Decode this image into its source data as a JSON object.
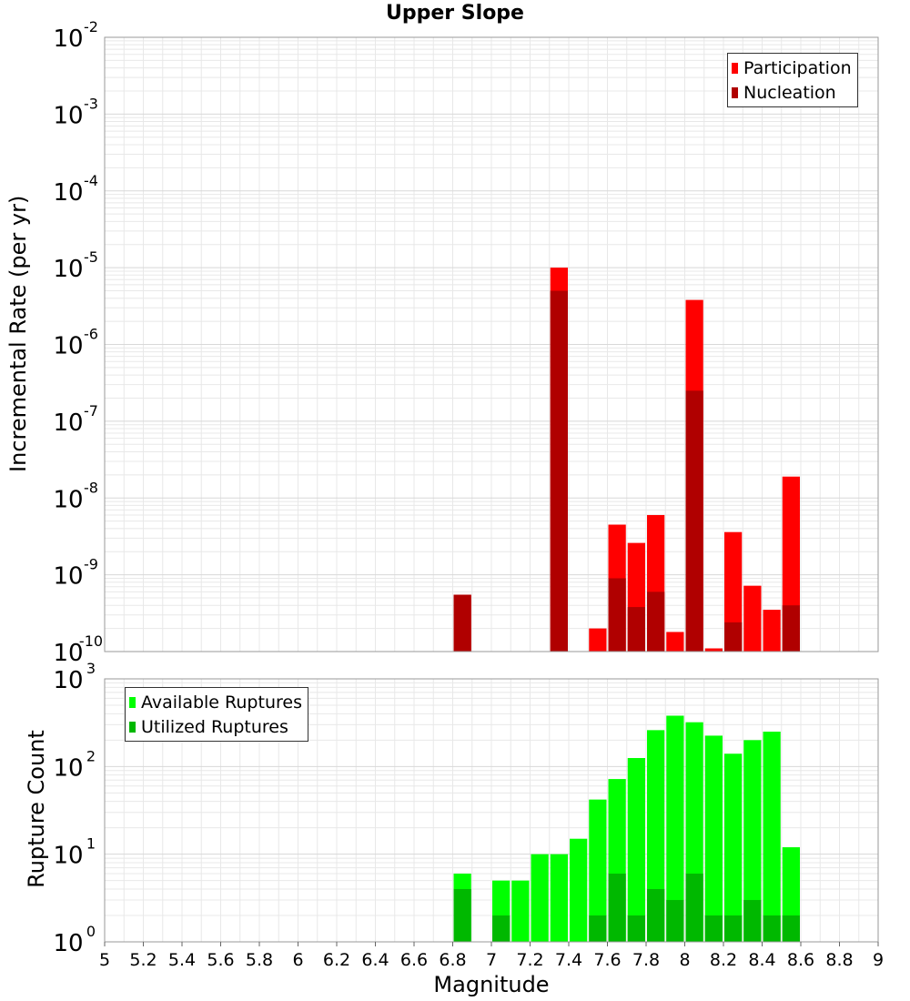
{
  "title": "Upper Slope",
  "xlabel": "Magnitude",
  "colors": {
    "participation": "#ff0000",
    "nucleation": "#b00000",
    "available": "#00ff00",
    "utilized": "#00b800",
    "grid": "#e8e8e8",
    "frame": "#999999"
  },
  "chart_data": [
    {
      "type": "bar",
      "title": "Upper Slope",
      "ylabel": "Incremental Rate (per yr)",
      "yscale": "log",
      "ylim_exp": [
        -10,
        -2
      ],
      "xlim": [
        5,
        9
      ],
      "grid": true,
      "legend_position": "top-right",
      "x": [
        6.85,
        7.35,
        7.55,
        7.65,
        7.75,
        7.85,
        7.95,
        8.05,
        8.15,
        8.25,
        8.35,
        8.45,
        8.55
      ],
      "series": [
        {
          "name": "Participation",
          "values": [
            5.5e-10,
            1e-05,
            2e-10,
            4.5e-09,
            2.6e-09,
            6e-09,
            1.8e-10,
            3.8e-06,
            1.1e-10,
            3.6e-09,
            7.2e-10,
            3.5e-10,
            1.9e-08
          ]
        },
        {
          "name": "Nucleation",
          "values": [
            5.5e-10,
            5e-06,
            null,
            9e-10,
            3.8e-10,
            6e-10,
            null,
            2.5e-07,
            null,
            2.4e-10,
            null,
            null,
            4e-10
          ]
        }
      ]
    },
    {
      "type": "bar",
      "ylabel": "Rupture Count",
      "yscale": "log",
      "ylim_exp": [
        0,
        3
      ],
      "xlim": [
        5,
        9
      ],
      "grid": true,
      "legend_position": "top-left",
      "x_ticks": [
        5,
        5.2,
        5.4,
        5.6,
        5.8,
        6,
        6.2,
        6.4,
        6.6,
        6.8,
        7,
        7.2,
        7.4,
        7.6,
        7.8,
        8,
        8.2,
        8.4,
        8.6,
        8.8,
        9
      ],
      "x_tick_labels": [
        "5",
        "5.2",
        "5.4",
        "5.6",
        "5.8",
        "6",
        "6.2",
        "6.4",
        "6.6",
        "6.8",
        "7",
        "7.2",
        "7.4",
        "7.6",
        "7.8",
        "8",
        "8.2",
        "8.4",
        "8.6",
        "8.8",
        "9"
      ],
      "x": [
        6.85,
        7.05,
        7.15,
        7.25,
        7.35,
        7.45,
        7.55,
        7.65,
        7.75,
        7.85,
        7.95,
        8.05,
        8.15,
        8.25,
        8.35,
        8.45,
        8.55
      ],
      "series": [
        {
          "name": "Available Ruptures",
          "values": [
            6,
            5,
            5,
            10,
            10,
            15,
            42,
            72,
            125,
            260,
            380,
            320,
            225,
            140,
            200,
            250,
            12
          ]
        },
        {
          "name": "Utilized Ruptures",
          "values": [
            4,
            2,
            null,
            null,
            1,
            null,
            2,
            6,
            2,
            4,
            3,
            6,
            2,
            2,
            3,
            2,
            2
          ]
        }
      ]
    }
  ]
}
